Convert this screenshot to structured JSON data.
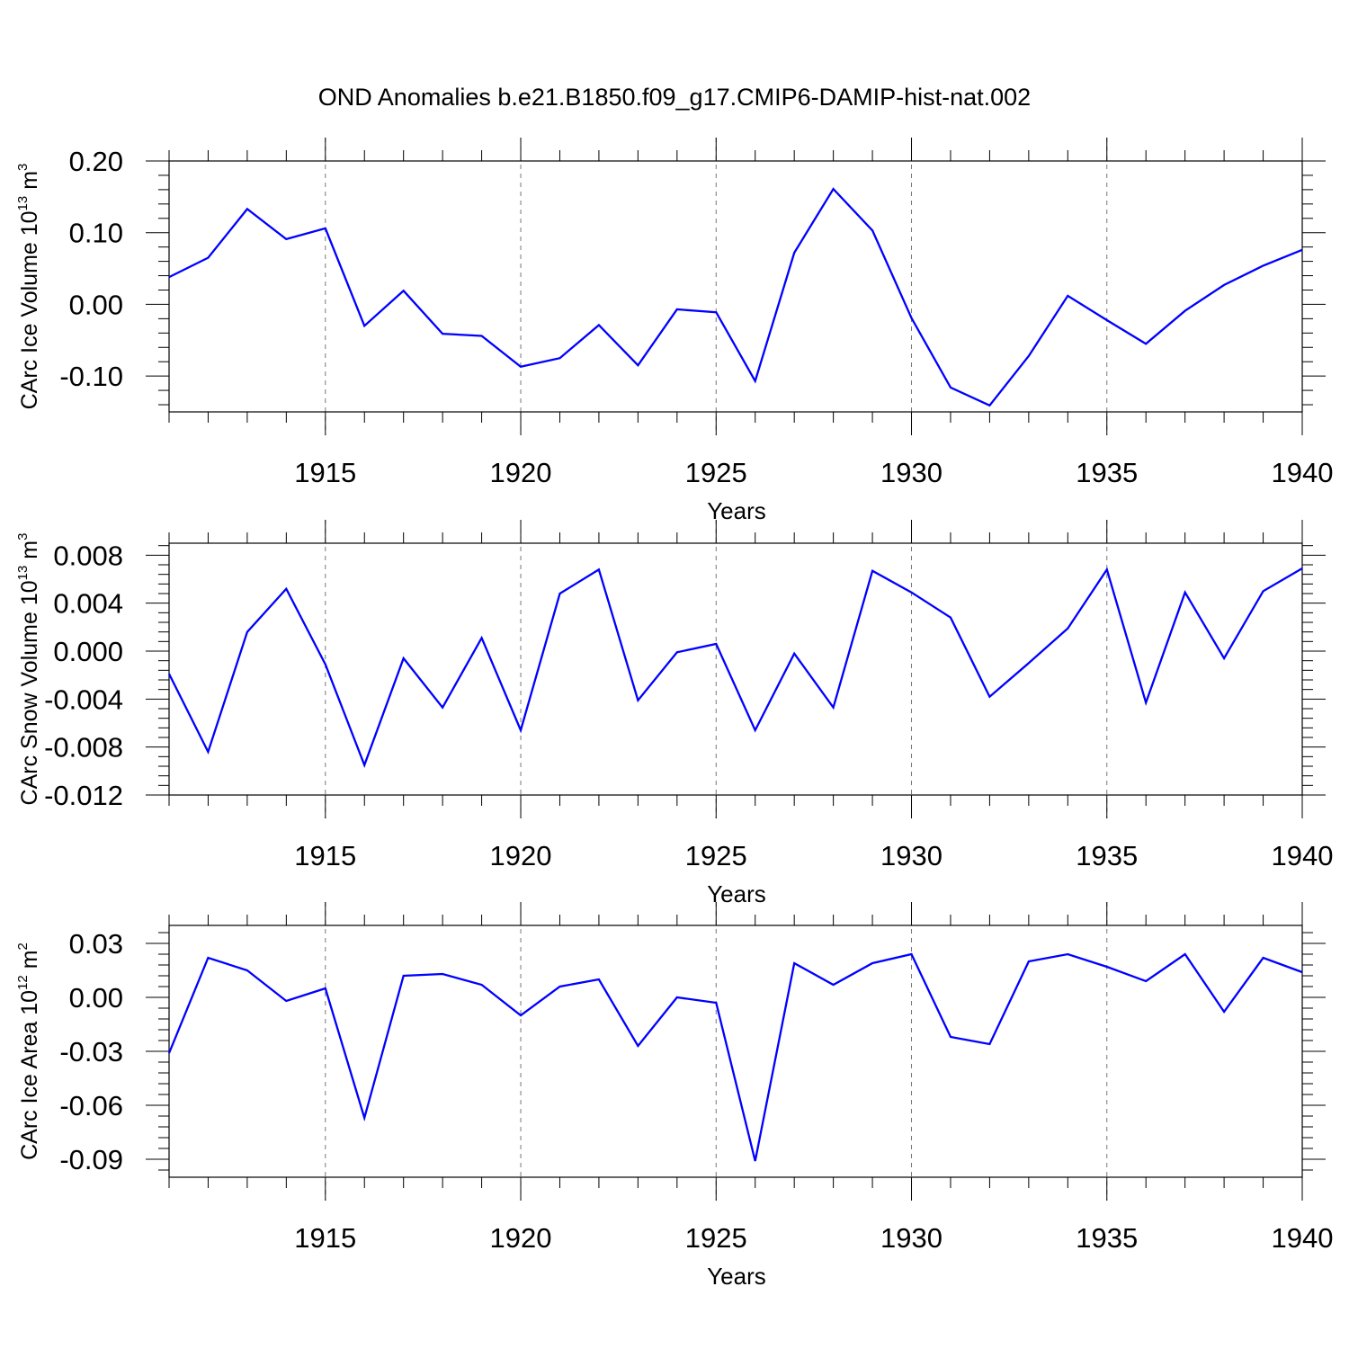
{
  "title": "OND Anomalies b.e21.B1850.f09_g17.CMIP6-DAMIP-hist-nat.002",
  "colors": {
    "line": "#0000ff",
    "grid": "#777777",
    "axis": "#000000"
  },
  "chart_data": [
    {
      "type": "line",
      "ylabel": {
        "text": "CArc Ice Volume 10",
        "exp": "13",
        "unit": " m",
        "unit_exp": "3"
      },
      "xlabel": "Years",
      "xlim": [
        1911,
        1940
      ],
      "ylim": [
        -0.15,
        0.2
      ],
      "yticks": [
        -0.1,
        0.0,
        0.1,
        0.2
      ],
      "ytick_labels": [
        "-0.10",
        "0.00",
        "0.10",
        "0.20"
      ],
      "xticks": [
        1915,
        1920,
        1925,
        1930,
        1935,
        1940
      ],
      "xtick_labels": [
        "1915",
        "1920",
        "1925",
        "1930",
        "1935",
        "1940"
      ],
      "x": [
        1911,
        1912,
        1913,
        1914,
        1915,
        1916,
        1917,
        1918,
        1919,
        1920,
        1921,
        1922,
        1923,
        1924,
        1925,
        1926,
        1927,
        1928,
        1929,
        1930,
        1931,
        1932,
        1933,
        1934,
        1935,
        1936,
        1937,
        1938,
        1939,
        1940
      ],
      "values": [
        0.038,
        0.065,
        0.133,
        0.091,
        0.106,
        -0.03,
        0.019,
        -0.041,
        -0.044,
        -0.087,
        -0.075,
        -0.029,
        -0.085,
        -0.007,
        -0.011,
        -0.107,
        0.072,
        0.161,
        0.103,
        -0.019,
        -0.116,
        -0.141,
        -0.072,
        0.012,
        -0.022,
        -0.055,
        -0.009,
        0.027,
        0.054,
        0.076
      ]
    },
    {
      "type": "line",
      "ylabel": {
        "text": "CArc Snow Volume 10",
        "exp": "13",
        "unit": " m",
        "unit_exp": "3"
      },
      "xlabel": "Years",
      "xlim": [
        1911,
        1940
      ],
      "ylim": [
        -0.012,
        0.009
      ],
      "yticks": [
        -0.012,
        -0.008,
        -0.004,
        0.0,
        0.004,
        0.008
      ],
      "ytick_labels": [
        "-0.012",
        "-0.008",
        "-0.004",
        "0.000",
        "0.004",
        "0.008"
      ],
      "xticks": [
        1915,
        1920,
        1925,
        1930,
        1935,
        1940
      ],
      "xtick_labels": [
        "1915",
        "1920",
        "1925",
        "1930",
        "1935",
        "1940"
      ],
      "x": [
        1911,
        1912,
        1913,
        1914,
        1915,
        1916,
        1917,
        1918,
        1919,
        1920,
        1921,
        1922,
        1923,
        1924,
        1925,
        1926,
        1927,
        1928,
        1929,
        1930,
        1931,
        1932,
        1933,
        1934,
        1935,
        1936,
        1937,
        1938,
        1939,
        1940
      ],
      "values": [
        -0.0019,
        -0.0084,
        0.0016,
        0.0052,
        -0.0011,
        -0.0095,
        -0.0006,
        -0.0047,
        0.0011,
        -0.0066,
        0.0048,
        0.0068,
        -0.0041,
        -0.0001,
        0.0006,
        -0.0066,
        -0.0002,
        -0.0047,
        0.0067,
        0.0049,
        0.0028,
        -0.0038,
        -0.001,
        0.0019,
        0.0068,
        -0.0043,
        0.0049,
        -0.0006,
        0.005,
        0.0069
      ]
    },
    {
      "type": "line",
      "ylabel": {
        "text": "CArc Ice Area 10",
        "exp": "12",
        "unit": " m",
        "unit_exp": "2"
      },
      "xlabel": "Years",
      "xlim": [
        1911,
        1940
      ],
      "ylim": [
        -0.1,
        0.04
      ],
      "yticks": [
        -0.09,
        -0.06,
        -0.03,
        0.0,
        0.03
      ],
      "ytick_labels": [
        "-0.09",
        "-0.06",
        "-0.03",
        "0.00",
        "0.03"
      ],
      "xticks": [
        1915,
        1920,
        1925,
        1930,
        1935,
        1940
      ],
      "xtick_labels": [
        "1915",
        "1920",
        "1925",
        "1930",
        "1935",
        "1940"
      ],
      "x": [
        1911,
        1912,
        1913,
        1914,
        1915,
        1916,
        1917,
        1918,
        1919,
        1920,
        1921,
        1922,
        1923,
        1924,
        1925,
        1926,
        1927,
        1928,
        1929,
        1930,
        1931,
        1932,
        1933,
        1934,
        1935,
        1936,
        1937,
        1938,
        1939,
        1940
      ],
      "values": [
        -0.031,
        0.022,
        0.015,
        -0.002,
        0.005,
        -0.067,
        0.012,
        0.013,
        0.007,
        -0.01,
        0.006,
        0.01,
        -0.027,
        0.0,
        -0.003,
        -0.091,
        0.019,
        0.007,
        0.019,
        0.024,
        -0.022,
        -0.026,
        0.02,
        0.024,
        0.017,
        0.009,
        0.024,
        -0.008,
        0.022,
        0.014
      ]
    }
  ]
}
